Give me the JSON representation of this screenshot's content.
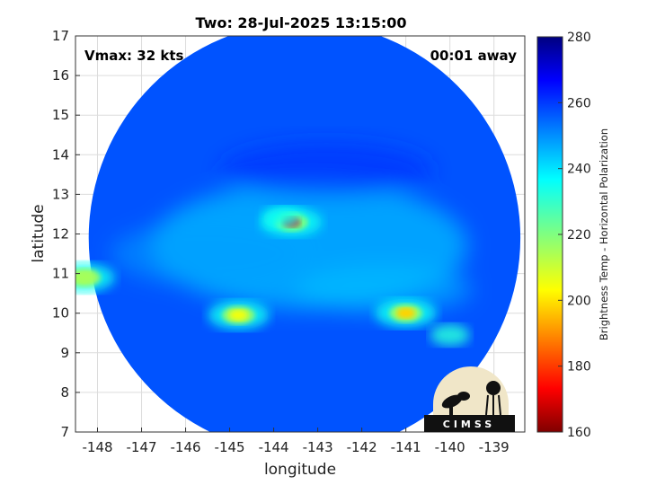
{
  "chart_data": {
    "type": "heatmap",
    "title": "Two: 28-Jul-2025 13:15:00",
    "xlabel": "longitude",
    "ylabel": "latitude",
    "xlim": [
      -148.5,
      -138.3
    ],
    "ylim": [
      7,
      17
    ],
    "xticks": [
      -148,
      -147,
      -146,
      -145,
      -144,
      -143,
      -142,
      -141,
      -140,
      -139
    ],
    "xtick_labels": [
      "-148",
      "-147",
      "-146",
      "-145",
      "-144",
      "-143",
      "-142",
      "-141",
      "-140",
      "-139"
    ],
    "yticks": [
      7,
      8,
      9,
      10,
      11,
      12,
      13,
      14,
      15,
      16,
      17
    ],
    "ytick_labels": [
      "7",
      "8",
      "9",
      "10",
      "11",
      "12",
      "13",
      "14",
      "15",
      "16",
      "17"
    ],
    "grid": true,
    "annotations": {
      "left": "Vmax: 32 kts",
      "right": "00:01 away"
    },
    "colorbar": {
      "label": "Brightness Temp - Horizontal Polarization",
      "range": [
        160,
        280
      ],
      "ticks": [
        160,
        180,
        200,
        220,
        240,
        260,
        280
      ],
      "tick_labels": [
        "160",
        "180",
        "200",
        "220",
        "240",
        "260",
        "280"
      ]
    },
    "swath": {
      "center": [
        -143.3,
        11.9
      ],
      "radius_deg_lon": 4.9,
      "radius_deg_lat": 4.9
    },
    "background_value": 257,
    "features": [
      {
        "name": "cold-core",
        "lon": -143.6,
        "lat": 12.3,
        "value": 172
      },
      {
        "name": "core-halo",
        "lon": -143.8,
        "lat": 12.4,
        "value": 235
      },
      {
        "name": "east-band-cell",
        "lon": -141.0,
        "lat": 10.0,
        "value": 198
      },
      {
        "name": "west-band-cell",
        "lon": -144.8,
        "lat": 9.95,
        "value": 205
      },
      {
        "name": "western-spot",
        "lon": -148.3,
        "lat": 10.9,
        "value": 215
      },
      {
        "name": "se-spot",
        "lon": -140.0,
        "lat": 9.45,
        "value": 232
      }
    ],
    "colormap": "jet"
  },
  "logo": {
    "text": "CIMSS"
  }
}
